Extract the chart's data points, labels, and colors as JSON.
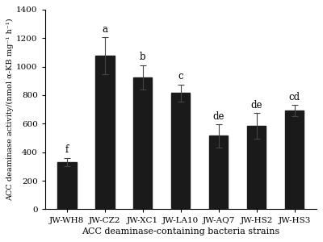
{
  "categories": [
    "JW-WH8",
    "JW-CZ2",
    "JW-XC1",
    "JW-LA10",
    "JW-AQ7",
    "JW-HS2",
    "JW-HS3"
  ],
  "values": [
    330,
    1075,
    925,
    815,
    515,
    585,
    690
  ],
  "errors": [
    30,
    130,
    85,
    60,
    80,
    90,
    40
  ],
  "labels": [
    "f",
    "a",
    "b",
    "c",
    "de",
    "de",
    "cd"
  ],
  "bar_color": "#1a1a1a",
  "ylabel": "ACC deaminase activity/(nmol α-KB mg⁻¹ h⁻¹)",
  "xlabel": "ACC deaminase-containing bacteria strains",
  "ylim": [
    0,
    1400
  ],
  "yticks": [
    0,
    200,
    400,
    600,
    800,
    1000,
    1200,
    1400
  ],
  "background_color": "#ffffff",
  "bar_width": 0.5,
  "label_fontsize": 8.5,
  "tick_fontsize": 7.5,
  "ylabel_fontsize": 7.0,
  "xlabel_fontsize": 8.0
}
